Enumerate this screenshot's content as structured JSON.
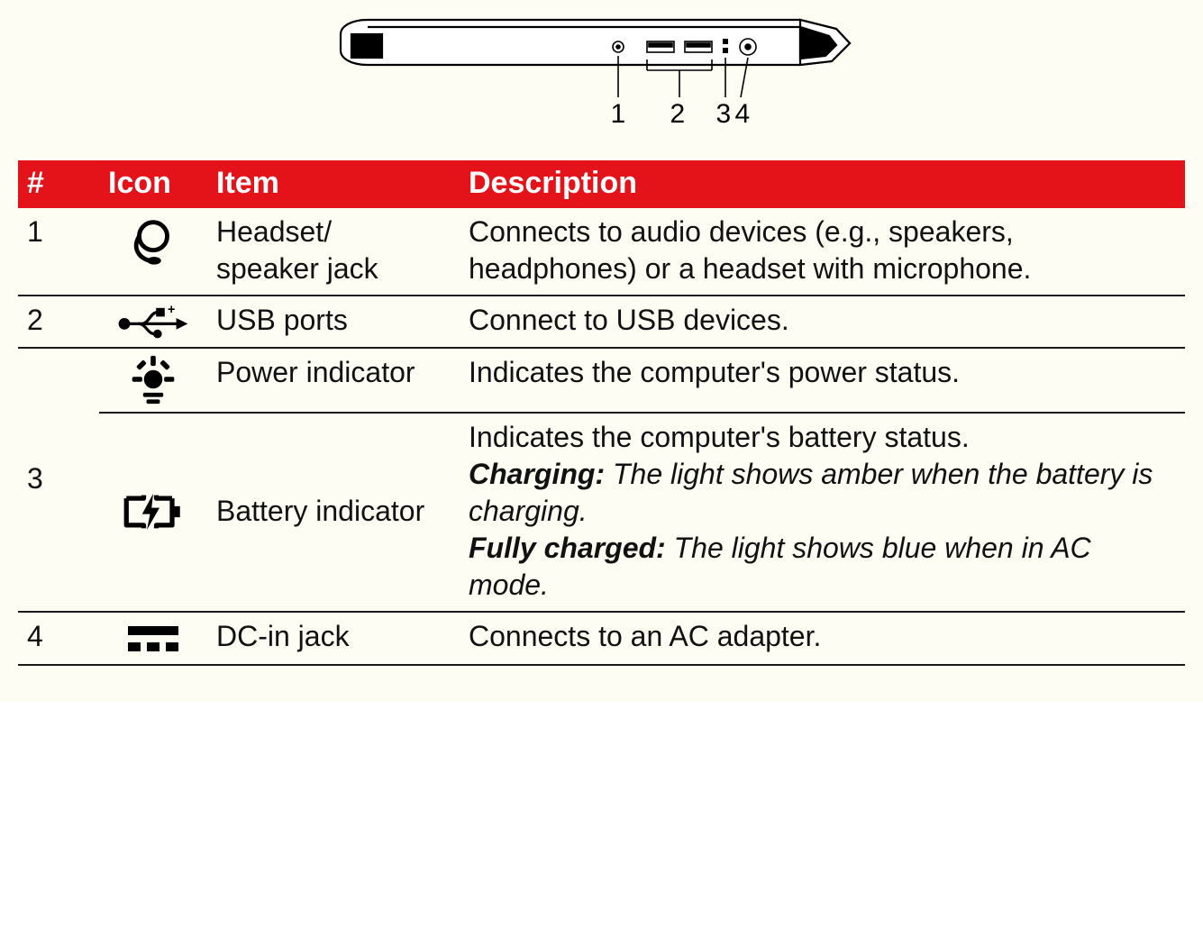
{
  "colors": {
    "header_bg": "#e4131a",
    "header_fg": "#ffffff",
    "rule": "#1a1a1a",
    "page_bg": "#fdfdf4",
    "text": "#111111"
  },
  "diagram": {
    "callouts": [
      "1",
      "2",
      "3",
      "4"
    ]
  },
  "table": {
    "headers": {
      "num": "#",
      "icon": "Icon",
      "item": "Item",
      "desc": "Description"
    },
    "rows": [
      {
        "num": "1",
        "icon": "headset",
        "item": "Headset/\nspeaker jack",
        "desc_plain": "Connects to audio devices (e.g., speakers, headphones) or a headset with microphone."
      },
      {
        "num": "2",
        "icon": "usb",
        "item": "USB ports",
        "desc_plain": "Connect to USB devices."
      },
      {
        "num": "3",
        "group": true,
        "sub": [
          {
            "icon": "power-light",
            "item": "Power indicator",
            "desc_plain": "Indicates the computer's power status."
          },
          {
            "icon": "battery-charge",
            "item": "Battery indicator",
            "desc_parts": [
              {
                "t": "plain",
                "v": "Indicates the computer's battery status."
              },
              {
                "t": "br"
              },
              {
                "t": "bi",
                "v": "Charging:"
              },
              {
                "t": "italic",
                "v": " The light shows amber when the battery is charging."
              },
              {
                "t": "br"
              },
              {
                "t": "bi",
                "v": "Fully charged:"
              },
              {
                "t": "italic",
                "v": " The light shows blue when in AC mode."
              }
            ]
          }
        ]
      },
      {
        "num": "4",
        "icon": "dc-in",
        "item": "DC-in jack",
        "desc_plain": "Connects to an AC adapter."
      }
    ]
  }
}
